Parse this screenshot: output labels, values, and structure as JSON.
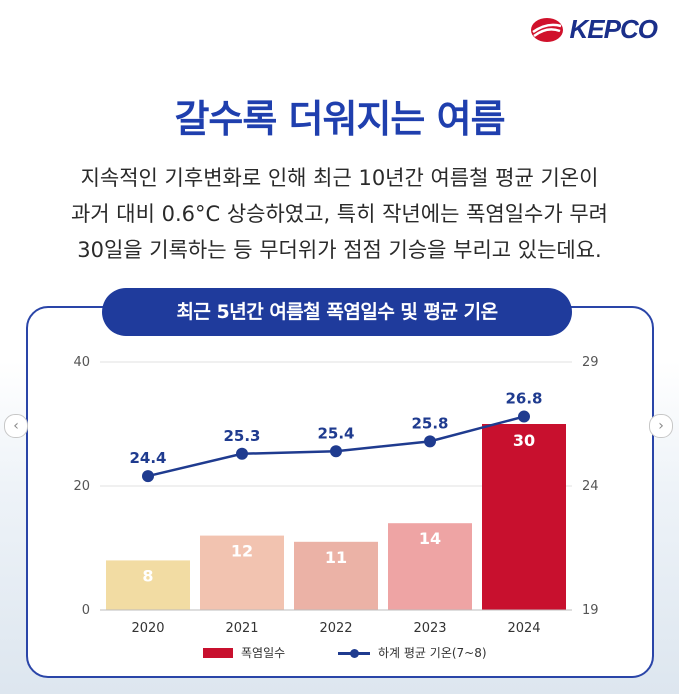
{
  "brand": {
    "name": "KEPCO"
  },
  "headline": "갈수록 더워지는 여름",
  "description": [
    "지속적인 기후변화로 인해 최근 10년간 여름철 평균 기온이",
    "과거 대비 0.6°C 상승하였고, 특히 작년에는 폭염일수가 무려",
    "30일을 기록하는 등 무더위가 점점 기승을 부리고 있는데요."
  ],
  "nav": {
    "prev": "‹",
    "next": "›"
  },
  "colors": {
    "primary": "#1f3b9c",
    "accent_red": "#c8102e",
    "line": "#1f3b8f"
  },
  "chart_data": {
    "type": "bar",
    "title": "최근 5년간 여름철 폭염일수 및 평균 기온",
    "categories": [
      "2020",
      "2021",
      "2022",
      "2023",
      "2024"
    ],
    "series": [
      {
        "name": "폭염일수",
        "type": "bar",
        "axis": "left",
        "values": [
          8,
          12,
          11,
          14,
          30
        ],
        "colors": [
          "#f2dca3",
          "#f2c3b0",
          "#ebb2a6",
          "#eea4a4",
          "#c8102e"
        ]
      },
      {
        "name": "하계 평균 기온(7~8)",
        "type": "line",
        "axis": "right",
        "values": [
          24.4,
          25.3,
          25.4,
          25.8,
          26.8
        ]
      }
    ],
    "left_axis": {
      "ticks": [
        "0",
        "20",
        "40"
      ],
      "range": [
        0,
        40
      ]
    },
    "right_axis": {
      "ticks": [
        "19",
        "24",
        "29"
      ],
      "range": [
        19,
        29
      ]
    },
    "legend": [
      "폭염일수",
      "하계 평균 기온(7~8)"
    ]
  }
}
